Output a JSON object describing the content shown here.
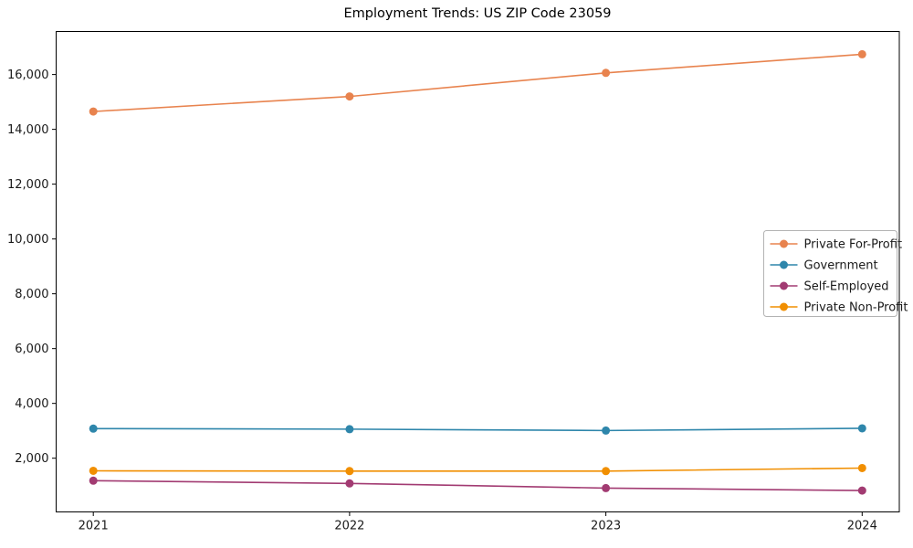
{
  "chart_data": {
    "type": "line",
    "title": "Employment Trends: US ZIP Code 23059",
    "categories": [
      "2021",
      "2022",
      "2023",
      "2024"
    ],
    "series": [
      {
        "name": "Private For-Profit",
        "color": "#E8834E",
        "values": [
          14650,
          15200,
          16060,
          16740
        ]
      },
      {
        "name": "Government",
        "color": "#2E86AB",
        "values": [
          3080,
          3060,
          3010,
          3090
        ]
      },
      {
        "name": "Self-Employed",
        "color": "#A23B72",
        "values": [
          1180,
          1080,
          910,
          820
        ]
      },
      {
        "name": "Private Non-Profit",
        "color": "#F18F01",
        "values": [
          1540,
          1530,
          1530,
          1640
        ]
      }
    ],
    "yticks": [
      2000,
      4000,
      6000,
      8000,
      10000,
      12000,
      14000,
      16000
    ],
    "ytick_labels": [
      "2,000",
      "4,000",
      "6,000",
      "8,000",
      "10,000",
      "12,000",
      "14,000",
      "16,000"
    ],
    "ylim": [
      40,
      17570
    ],
    "xlabel": "",
    "ylabel": "",
    "grid": false,
    "legend_position": "center right",
    "marker": "circle",
    "colors": {
      "background": "#FFFFFF",
      "axis": "#000000",
      "tick_label": "#1a1a1a",
      "legend_border": "#B3B3B3"
    }
  }
}
